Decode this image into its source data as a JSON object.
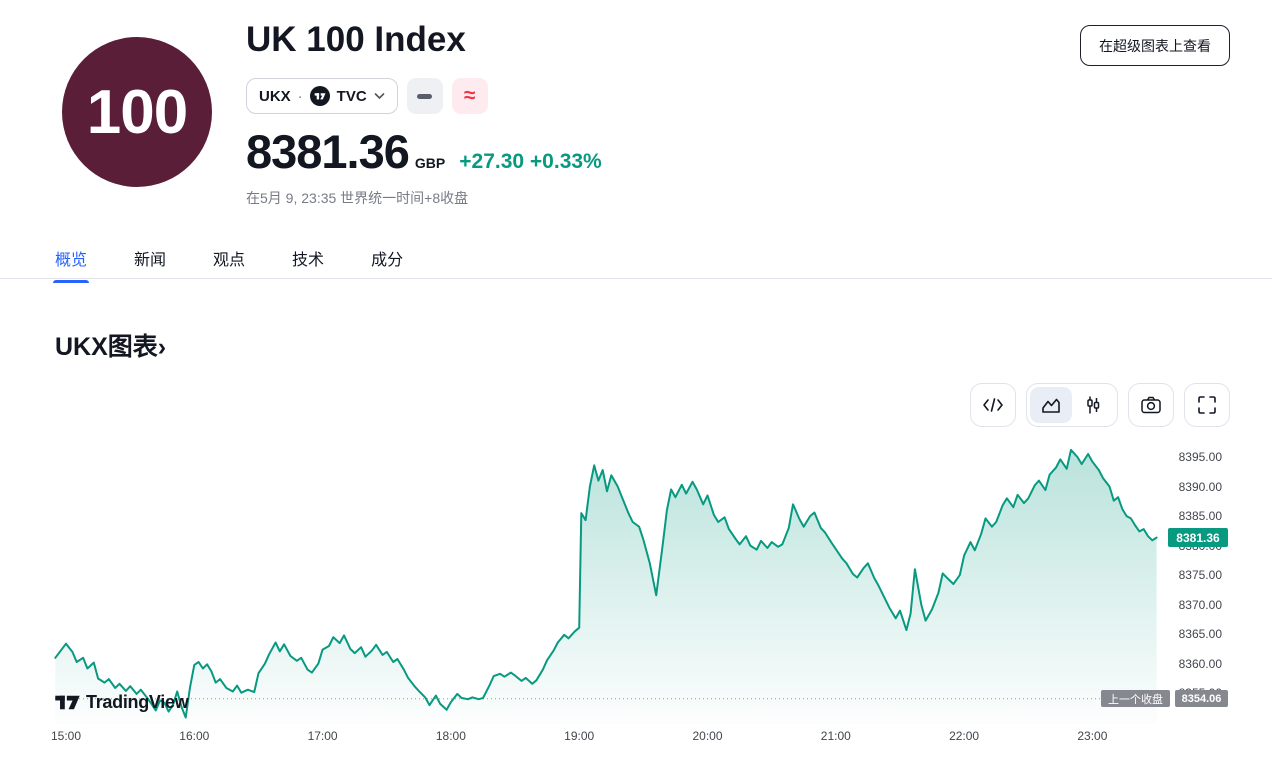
{
  "header": {
    "logo_text": "100",
    "title": "UK 100 Index",
    "symbol_pill": {
      "symbol": "UKX",
      "separator": "·",
      "exchange": "TVC",
      "exchange_logo": "tradingview-icon",
      "chevron": "chevron-down-icon"
    },
    "status_buttons": [
      {
        "icon": "dash-icon",
        "glyph": ""
      },
      {
        "icon": "wave-icon",
        "glyph": "≈"
      }
    ],
    "price": {
      "value": "8381.36",
      "currency": "GBP",
      "change": "+27.30",
      "change_percent": "+0.33%"
    },
    "closed_note": "在5月 9, 23:35 世界统一时间+8收盘",
    "cta_button": "在超级图表上查看"
  },
  "tabs": {
    "items": [
      "概览",
      "新闻",
      "观点",
      "技术",
      "成分"
    ],
    "active_index": 0
  },
  "section": {
    "title": "UKX图表",
    "chevron": "›"
  },
  "toolbar": {
    "buttons": [
      "code-icon",
      "area-chart-icon",
      "candlestick-icon",
      "camera-icon",
      "fullscreen-icon"
    ],
    "active": "area-chart-icon"
  },
  "watermark": {
    "text": "TradingView",
    "icon": "tradingview-logo"
  },
  "colors": {
    "accent_green": "#089981",
    "accent_blue": "#2962ff",
    "accent_red": "#f23645",
    "logo_maroon": "#5a1e38",
    "badge_grey": "#85888f",
    "border_grey": "#e0e3eb"
  },
  "chart_data": {
    "type": "area",
    "title": "UKX图表",
    "symbol": "UKX",
    "line_color": "#089981",
    "grid": "off",
    "legend": "none",
    "x_ticks": [
      "15:00",
      "16:00",
      "17:00",
      "18:00",
      "19:00",
      "20:00",
      "21:00",
      "22:00",
      "23:00"
    ],
    "y_ticks": [
      8395.0,
      8390.0,
      8385.0,
      8380.0,
      8375.0,
      8370.0,
      8365.0,
      8360.0,
      8355.0
    ],
    "y_tick_labels": [
      "8395.00",
      "8390.00",
      "8385.00",
      "8380.00",
      "8375.00",
      "8370.00",
      "8365.00",
      "8360.00",
      "8355.00"
    ],
    "ylim": [
      8348.5,
      8398.2
    ],
    "previous_close": {
      "label": "上一个收盘",
      "value": 8354.06,
      "value_label": "8354.06"
    },
    "last_price": {
      "value": 8381.36,
      "label": "8381.36",
      "badge_color": "#089981"
    },
    "series": [
      {
        "name": "UKX",
        "points": [
          [
            "14:55",
            8361.0
          ],
          [
            "15:00",
            8363.4
          ],
          [
            "15:03",
            8362.0
          ],
          [
            "15:05",
            8360.3
          ],
          [
            "15:08",
            8361.0
          ],
          [
            "15:10",
            8359.2
          ],
          [
            "15:13",
            8360.2
          ],
          [
            "15:15",
            8357.5
          ],
          [
            "15:18",
            8356.8
          ],
          [
            "15:20",
            8357.4
          ],
          [
            "15:23",
            8355.9
          ],
          [
            "15:25",
            8356.6
          ],
          [
            "15:28",
            8355.4
          ],
          [
            "15:30",
            8356.2
          ],
          [
            "15:33",
            8354.9
          ],
          [
            "15:35",
            8355.6
          ],
          [
            "15:38",
            8354.2
          ],
          [
            "15:40",
            8353.2
          ],
          [
            "15:42",
            8352.1
          ],
          [
            "15:44",
            8353.8
          ],
          [
            "15:46",
            8353.4
          ],
          [
            "15:48",
            8351.9
          ],
          [
            "15:50",
            8353.0
          ],
          [
            "15:52",
            8355.3
          ],
          [
            "15:54",
            8352.7
          ],
          [
            "15:56",
            8350.9
          ],
          [
            "15:58",
            8356.0
          ],
          [
            "16:00",
            8359.8
          ],
          [
            "16:02",
            8360.3
          ],
          [
            "16:04",
            8359.2
          ],
          [
            "16:06",
            8359.9
          ],
          [
            "16:08",
            8358.7
          ],
          [
            "16:10",
            8356.8
          ],
          [
            "16:12",
            8357.4
          ],
          [
            "16:15",
            8355.9
          ],
          [
            "16:18",
            8355.3
          ],
          [
            "16:20",
            8356.3
          ],
          [
            "16:22",
            8355.1
          ],
          [
            "16:25",
            8355.6
          ],
          [
            "16:28",
            8355.2
          ],
          [
            "16:30",
            8358.4
          ],
          [
            "16:33",
            8360.0
          ],
          [
            "16:35",
            8361.6
          ],
          [
            "16:38",
            8363.6
          ],
          [
            "16:40",
            8362.1
          ],
          [
            "16:42",
            8363.3
          ],
          [
            "16:45",
            8361.3
          ],
          [
            "16:48",
            8360.5
          ],
          [
            "16:50",
            8361.0
          ],
          [
            "16:53",
            8359.0
          ],
          [
            "16:55",
            8358.5
          ],
          [
            "16:58",
            8360.0
          ],
          [
            "17:00",
            8362.4
          ],
          [
            "17:03",
            8363.0
          ],
          [
            "17:05",
            8364.5
          ],
          [
            "17:08",
            8363.5
          ],
          [
            "17:10",
            8364.8
          ],
          [
            "17:13",
            8362.5
          ],
          [
            "17:15",
            8361.8
          ],
          [
            "17:18",
            8362.8
          ],
          [
            "17:20",
            8361.2
          ],
          [
            "17:23",
            8362.2
          ],
          [
            "17:25",
            8363.2
          ],
          [
            "17:28",
            8361.5
          ],
          [
            "17:30",
            8362.0
          ],
          [
            "17:33",
            8360.3
          ],
          [
            "17:35",
            8360.8
          ],
          [
            "17:38",
            8359.0
          ],
          [
            "17:40",
            8357.6
          ],
          [
            "17:43",
            8356.2
          ],
          [
            "17:45",
            8355.4
          ],
          [
            "17:48",
            8354.3
          ],
          [
            "17:50",
            8353.0
          ],
          [
            "17:53",
            8354.6
          ],
          [
            "17:55",
            8353.2
          ],
          [
            "17:58",
            8352.2
          ],
          [
            "18:00",
            8353.5
          ],
          [
            "18:03",
            8354.9
          ],
          [
            "18:05",
            8354.2
          ],
          [
            "18:08",
            8354.0
          ],
          [
            "18:10",
            8354.3
          ],
          [
            "18:13",
            8354.0
          ],
          [
            "18:15",
            8354.2
          ],
          [
            "18:18",
            8356.3
          ],
          [
            "18:20",
            8357.9
          ],
          [
            "18:23",
            8358.3
          ],
          [
            "18:25",
            8357.8
          ],
          [
            "18:28",
            8358.5
          ],
          [
            "18:30",
            8358.0
          ],
          [
            "18:33",
            8357.1
          ],
          [
            "18:35",
            8357.6
          ],
          [
            "18:38",
            8356.6
          ],
          [
            "18:40",
            8357.2
          ],
          [
            "18:43",
            8359.0
          ],
          [
            "18:45",
            8360.6
          ],
          [
            "18:48",
            8362.2
          ],
          [
            "18:50",
            8363.6
          ],
          [
            "18:53",
            8364.9
          ],
          [
            "18:55",
            8364.3
          ],
          [
            "18:58",
            8365.5
          ],
          [
            "19:00",
            8366.1
          ],
          [
            "19:01",
            8385.5
          ],
          [
            "19:03",
            8384.3
          ],
          [
            "19:05",
            8390.0
          ],
          [
            "19:07",
            8393.6
          ],
          [
            "19:09",
            8391.0
          ],
          [
            "19:11",
            8392.8
          ],
          [
            "19:13",
            8389.2
          ],
          [
            "19:15",
            8391.9
          ],
          [
            "19:18",
            8390.0
          ],
          [
            "19:20",
            8388.2
          ],
          [
            "19:23",
            8385.5
          ],
          [
            "19:25",
            8384.0
          ],
          [
            "19:28",
            8383.2
          ],
          [
            "19:30",
            8381.0
          ],
          [
            "19:33",
            8377.0
          ],
          [
            "19:36",
            8371.6
          ],
          [
            "19:39",
            8380.0
          ],
          [
            "19:41",
            8386.0
          ],
          [
            "19:43",
            8389.5
          ],
          [
            "19:45",
            8388.2
          ],
          [
            "19:48",
            8390.3
          ],
          [
            "19:50",
            8388.8
          ],
          [
            "19:53",
            8390.8
          ],
          [
            "19:55",
            8389.5
          ],
          [
            "19:58",
            8387.0
          ],
          [
            "20:00",
            8388.5
          ],
          [
            "20:03",
            8385.2
          ],
          [
            "20:05",
            8384.0
          ],
          [
            "20:08",
            8384.8
          ],
          [
            "20:10",
            8382.8
          ],
          [
            "20:13",
            8381.2
          ],
          [
            "20:15",
            8380.2
          ],
          [
            "20:18",
            8381.6
          ],
          [
            "20:20",
            8380.0
          ],
          [
            "20:23",
            8379.3
          ],
          [
            "20:25",
            8380.8
          ],
          [
            "20:28",
            8379.6
          ],
          [
            "20:30",
            8380.6
          ],
          [
            "20:33",
            8379.8
          ],
          [
            "20:35",
            8380.2
          ],
          [
            "20:38",
            8383.0
          ],
          [
            "20:40",
            8387.0
          ],
          [
            "20:43",
            8384.5
          ],
          [
            "20:45",
            8383.2
          ],
          [
            "20:48",
            8385.0
          ],
          [
            "20:50",
            8385.6
          ],
          [
            "20:53",
            8383.0
          ],
          [
            "20:55",
            8382.2
          ],
          [
            "20:58",
            8380.5
          ],
          [
            "21:00",
            8379.4
          ],
          [
            "21:03",
            8377.8
          ],
          [
            "21:05",
            8377.0
          ],
          [
            "21:08",
            8375.2
          ],
          [
            "21:10",
            8374.6
          ],
          [
            "21:13",
            8376.2
          ],
          [
            "21:15",
            8377.0
          ],
          [
            "21:18",
            8374.5
          ],
          [
            "21:20",
            8373.2
          ],
          [
            "21:23",
            8371.0
          ],
          [
            "21:25",
            8369.5
          ],
          [
            "21:28",
            8367.7
          ],
          [
            "21:30",
            8369.0
          ],
          [
            "21:33",
            8365.7
          ],
          [
            "21:35",
            8368.5
          ],
          [
            "21:37",
            8376.0
          ],
          [
            "21:40",
            8370.0
          ],
          [
            "21:42",
            8367.3
          ],
          [
            "21:45",
            8369.2
          ],
          [
            "21:48",
            8372.0
          ],
          [
            "21:50",
            8375.3
          ],
          [
            "21:53",
            8374.2
          ],
          [
            "21:55",
            8373.5
          ],
          [
            "21:58",
            8375.0
          ],
          [
            "22:00",
            8378.3
          ],
          [
            "22:03",
            8380.6
          ],
          [
            "22:05",
            8379.2
          ],
          [
            "22:08",
            8382.0
          ],
          [
            "22:10",
            8384.6
          ],
          [
            "22:13",
            8383.2
          ],
          [
            "22:15",
            8384.0
          ],
          [
            "22:18",
            8386.8
          ],
          [
            "22:20",
            8388.0
          ],
          [
            "22:23",
            8386.5
          ],
          [
            "22:25",
            8388.6
          ],
          [
            "22:28",
            8387.2
          ],
          [
            "22:30",
            8388.0
          ],
          [
            "22:33",
            8390.2
          ],
          [
            "22:35",
            8391.0
          ],
          [
            "22:38",
            8389.4
          ],
          [
            "22:40",
            8392.0
          ],
          [
            "22:43",
            8393.2
          ],
          [
            "22:45",
            8394.6
          ],
          [
            "22:48",
            8393.0
          ],
          [
            "22:50",
            8396.2
          ],
          [
            "22:53",
            8395.0
          ],
          [
            "22:55",
            8393.8
          ],
          [
            "22:58",
            8395.5
          ],
          [
            "23:00",
            8394.2
          ],
          [
            "23:03",
            8392.8
          ],
          [
            "23:05",
            8391.4
          ],
          [
            "23:08",
            8390.0
          ],
          [
            "23:10",
            8387.6
          ],
          [
            "23:12",
            8388.2
          ],
          [
            "23:14",
            8386.2
          ],
          [
            "23:16",
            8385.0
          ],
          [
            "23:18",
            8384.6
          ],
          [
            "23:20",
            8383.4
          ],
          [
            "23:22",
            8382.4
          ],
          [
            "23:24",
            8382.8
          ],
          [
            "23:26",
            8381.6
          ],
          [
            "23:28",
            8380.9
          ],
          [
            "23:30",
            8381.36
          ]
        ]
      }
    ]
  }
}
